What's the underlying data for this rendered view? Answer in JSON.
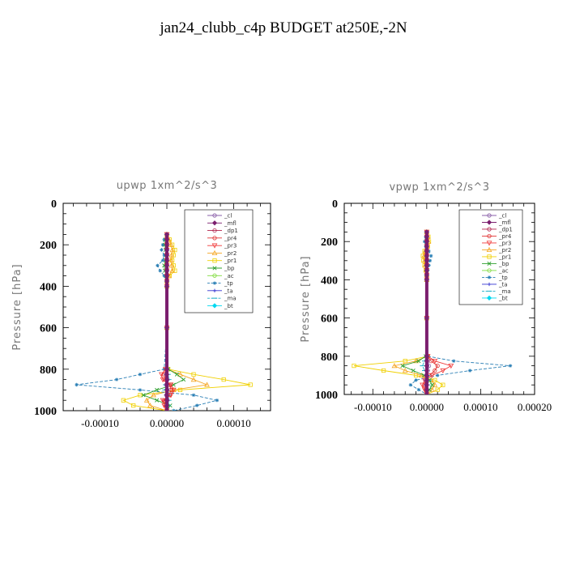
{
  "figure_title": "jan24_clubb_c4p  BUDGET at250E,-2N",
  "legend_entries": [
    {
      "name": "_cl",
      "color": "#8a5fa8",
      "marker": "circle"
    },
    {
      "name": "_mfl",
      "color": "#7b1e6e",
      "marker": "diamond"
    },
    {
      "name": "_dp1",
      "color": "#b0204a",
      "marker": "circle"
    },
    {
      "name": "_pr4",
      "color": "#e03030",
      "marker": "circle"
    },
    {
      "name": "_pr3",
      "color": "#f03838",
      "marker": "triangle-down"
    },
    {
      "name": "_pr2",
      "color": "#f5a623",
      "marker": "triangle"
    },
    {
      "name": "_pr1",
      "color": "#f0d000",
      "marker": "square"
    },
    {
      "name": "_bp",
      "color": "#2fa02f",
      "marker": "x"
    },
    {
      "name": "_ac",
      "color": "#7fdc3c",
      "marker": "circle"
    },
    {
      "name": "_tp",
      "color": "#2a7fb5",
      "marker": "asterisk"
    },
    {
      "name": "_ta",
      "color": "#3030d0",
      "marker": "plus"
    },
    {
      "name": "_ma",
      "color": "#20b0c8",
      "marker": "dash"
    },
    {
      "name": "_bt",
      "color": "#00d8f0",
      "marker": "diamond"
    }
  ],
  "chart_data": [
    {
      "type": "line",
      "title": "upwp   1xm^2/s^3",
      "xlabel": "",
      "ylabel": "Pressure [hPa]",
      "xlim": [
        -0.000155,
        0.000155
      ],
      "ylim": [
        1000,
        0
      ],
      "xticks": [
        -0.0001,
        0,
        0.0001
      ],
      "xtick_labels": [
        "-0.00010",
        "0.00000",
        "0.00010"
      ],
      "yticks": [
        0,
        200,
        400,
        600,
        800,
        1000
      ],
      "legend_position": "top-right",
      "levels": [
        150,
        175,
        200,
        225,
        250,
        275,
        300,
        325,
        350,
        375,
        400,
        600,
        800,
        825,
        850,
        875,
        900,
        925,
        950,
        975,
        1000
      ],
      "series": [
        {
          "name": "_pr1",
          "values": [
            0,
            4e-06,
            8e-06,
            1.2e-05,
            1e-05,
            8e-06,
            1e-05,
            1.2e-05,
            4e-06,
            0,
            0,
            0,
            2e-06,
            4e-05,
            8.5e-05,
            0.000125,
            2e-05,
            -4e-05,
            -6.5e-05,
            -5e-05,
            0
          ]
        },
        {
          "name": "_pr2",
          "values": [
            0,
            3e-06,
            6e-06,
            8e-06,
            7e-06,
            6e-06,
            7e-06,
            8e-06,
            3e-06,
            0,
            0,
            0,
            1e-06,
            2e-05,
            4e-05,
            6e-05,
            1e-05,
            -2e-05,
            -3e-05,
            -2.5e-05,
            0
          ]
        },
        {
          "name": "_tp",
          "values": [
            0,
            -4e-06,
            -6e-06,
            -8e-06,
            -4e-06,
            -6e-06,
            -1.4e-05,
            -1e-05,
            -4e-06,
            0,
            0,
            0,
            -4e-06,
            -4e-05,
            -7.5e-05,
            -0.000135,
            -4e-05,
            4e-05,
            7.5e-05,
            4.5e-05,
            1e-05
          ]
        },
        {
          "name": "_bp",
          "values": [
            0,
            -2e-06,
            -3e-06,
            -2e-06,
            -1e-06,
            -2e-06,
            -4e-06,
            -3e-06,
            -1e-06,
            0,
            0,
            0,
            2e-06,
            1.5e-05,
            2.5e-05,
            1e-05,
            -1.5e-05,
            -3.5e-05,
            -1.5e-05,
            5e-06,
            0
          ]
        },
        {
          "name": "_pr3",
          "values": [
            0,
            0,
            0,
            0,
            0,
            0,
            0,
            0,
            0,
            0,
            0,
            0,
            -2e-06,
            -8e-06,
            -6e-06,
            6e-06,
            1e-05,
            6e-06,
            -6e-06,
            -4e-06,
            0
          ]
        },
        {
          "name": "_pr4",
          "values": [
            0,
            0,
            0,
            0,
            0,
            0,
            0,
            0,
            0,
            0,
            0,
            0,
            -1e-06,
            -4e-06,
            -3e-06,
            4e-06,
            6e-06,
            4e-06,
            -4e-06,
            -2e-06,
            0
          ]
        },
        {
          "name": "_ma",
          "values": [
            0,
            0,
            0,
            0,
            0,
            0,
            0,
            0,
            0,
            0,
            0,
            0,
            0,
            2e-06,
            3e-06,
            -2e-06,
            -3e-06,
            2e-06,
            3e-06,
            2e-06,
            0
          ]
        },
        {
          "name": "_cl",
          "values": [
            0,
            0,
            0,
            0,
            0,
            0,
            0,
            0,
            0,
            0,
            0,
            0,
            0,
            -1e-06,
            1e-06,
            -1e-06,
            1e-06,
            -1e-06,
            1e-06,
            0,
            0
          ]
        },
        {
          "name": "_mfl",
          "values": [
            0,
            0,
            0,
            0,
            0,
            0,
            0,
            0,
            0,
            0,
            0,
            0,
            0,
            0,
            0,
            0,
            0,
            0,
            0,
            0,
            0
          ]
        }
      ]
    },
    {
      "type": "line",
      "title": "vpwp   1xm^2/s^3",
      "xlabel": "",
      "ylabel": "Pressure [hPa]",
      "xlim": [
        -0.000153,
        0.0002
      ],
      "ylim": [
        1000,
        0
      ],
      "xticks": [
        -0.0001,
        0,
        0.0001,
        0.0002
      ],
      "xtick_labels": [
        "-0.00010",
        "0.00000",
        "0.00010",
        "0.00020"
      ],
      "yticks": [
        0,
        200,
        400,
        600,
        800,
        1000
      ],
      "legend_position": "top-right",
      "levels": [
        150,
        175,
        200,
        225,
        250,
        275,
        300,
        325,
        350,
        375,
        400,
        600,
        800,
        825,
        850,
        875,
        900,
        925,
        950,
        975,
        1000
      ],
      "series": [
        {
          "name": "_pr1",
          "values": [
            0,
            3e-06,
            4e-06,
            2e-06,
            -4e-06,
            -7e-06,
            -6e-06,
            -4e-06,
            -2e-06,
            0,
            0,
            0,
            2e-06,
            -4e-05,
            -0.000135,
            -8e-05,
            -2e-05,
            1.5e-05,
            3e-05,
            2e-05,
            0
          ]
        },
        {
          "name": "_pr2",
          "values": [
            0,
            2e-06,
            3e-06,
            1e-06,
            -3e-06,
            -5e-06,
            -4e-06,
            -3e-06,
            -1e-06,
            0,
            0,
            0,
            1e-06,
            -2e-05,
            -6e-05,
            -4e-05,
            -1e-05,
            8e-06,
            1.5e-05,
            1e-05,
            0
          ]
        },
        {
          "name": "_tp",
          "values": [
            0,
            -2e-06,
            -4e-06,
            -2e-06,
            4e-06,
            8e-06,
            6e-06,
            4e-06,
            2e-06,
            0,
            0,
            0,
            2e-06,
            5e-05,
            0.000155,
            8e-05,
            2e-05,
            -2e-05,
            -3e-05,
            -1.5e-05,
            0
          ]
        },
        {
          "name": "_bp",
          "values": [
            0,
            0,
            0,
            0,
            0,
            0,
            0,
            0,
            0,
            0,
            0,
            0,
            -2e-06,
            -1.5e-05,
            -4.5e-05,
            -2.5e-05,
            -5e-06,
            5e-06,
            1e-05,
            5e-06,
            0
          ]
        },
        {
          "name": "_pr3",
          "values": [
            0,
            0,
            0,
            0,
            0,
            0,
            0,
            0,
            0,
            0,
            0,
            0,
            2e-06,
            1.5e-05,
            4.5e-05,
            3e-05,
            1e-05,
            -4e-06,
            -8e-06,
            -4e-06,
            0
          ]
        },
        {
          "name": "_pr4",
          "values": [
            0,
            0,
            0,
            0,
            0,
            0,
            0,
            0,
            0,
            0,
            0,
            0,
            1e-06,
            8e-06,
            2e-05,
            1.5e-05,
            5e-06,
            -2e-06,
            -4e-06,
            -2e-06,
            0
          ]
        },
        {
          "name": "_ma",
          "values": [
            0,
            0,
            0,
            0,
            0,
            0,
            0,
            0,
            0,
            0,
            0,
            0,
            0,
            -4e-06,
            -8e-06,
            -4e-06,
            2e-06,
            4e-06,
            2e-06,
            0,
            0
          ]
        },
        {
          "name": "_cl",
          "values": [
            0,
            0,
            0,
            0,
            0,
            0,
            0,
            0,
            0,
            0,
            0,
            0,
            0,
            2e-06,
            4e-06,
            2e-06,
            -1e-06,
            -2e-06,
            -1e-06,
            0,
            0
          ]
        },
        {
          "name": "_mfl",
          "values": [
            0,
            0,
            0,
            0,
            0,
            0,
            0,
            0,
            0,
            0,
            0,
            0,
            0,
            0,
            0,
            0,
            0,
            0,
            0,
            0,
            0
          ]
        }
      ]
    }
  ]
}
